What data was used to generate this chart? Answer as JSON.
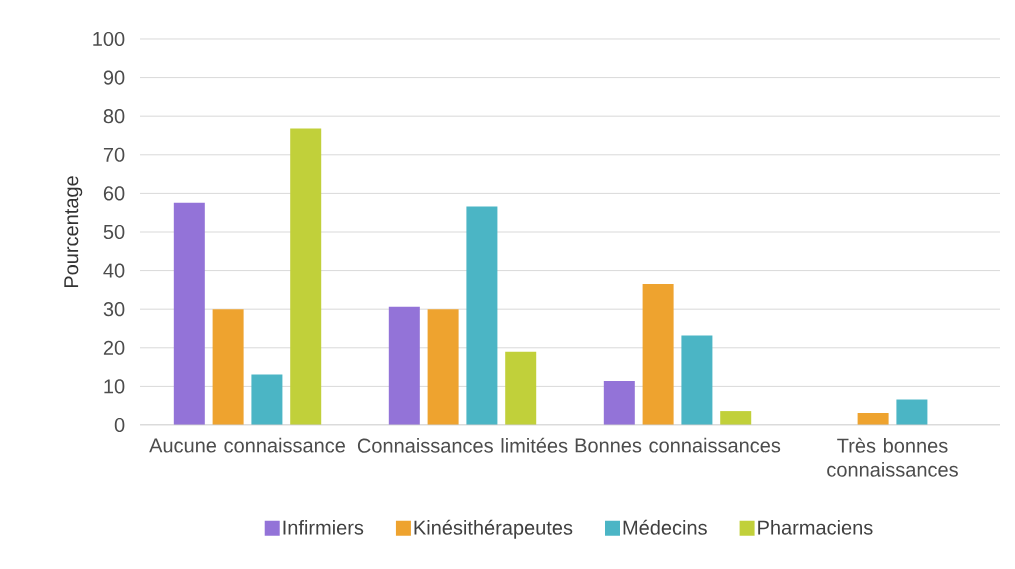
{
  "chart_data": {
    "type": "bar",
    "ylabel": "Pourcentage",
    "categories": [
      "Aucune connaissance",
      "Connaissances limitées",
      "Bonnes connaissances",
      "Très bonnes connaissances"
    ],
    "series": [
      {
        "name": "Infirmiers",
        "color": "#9373d8",
        "values": [
          57.6,
          30.6,
          11.4,
          0
        ]
      },
      {
        "name": "Kinésithérapeutes",
        "color": "#eea32f",
        "values": [
          30,
          30,
          36.5,
          3.1
        ]
      },
      {
        "name": "Médecins",
        "color": "#4bb5c5",
        "values": [
          13.1,
          56.6,
          23.2,
          6.6
        ]
      },
      {
        "name": "Pharmaciens",
        "color": "#c1d03a",
        "values": [
          76.8,
          19.0,
          3.6,
          0
        ]
      }
    ],
    "ylim": [
      0,
      100
    ],
    "yticks": [
      0,
      10,
      20,
      30,
      40,
      50,
      60,
      70,
      80,
      90,
      100
    ],
    "grid": "y",
    "legend": "bottom"
  }
}
